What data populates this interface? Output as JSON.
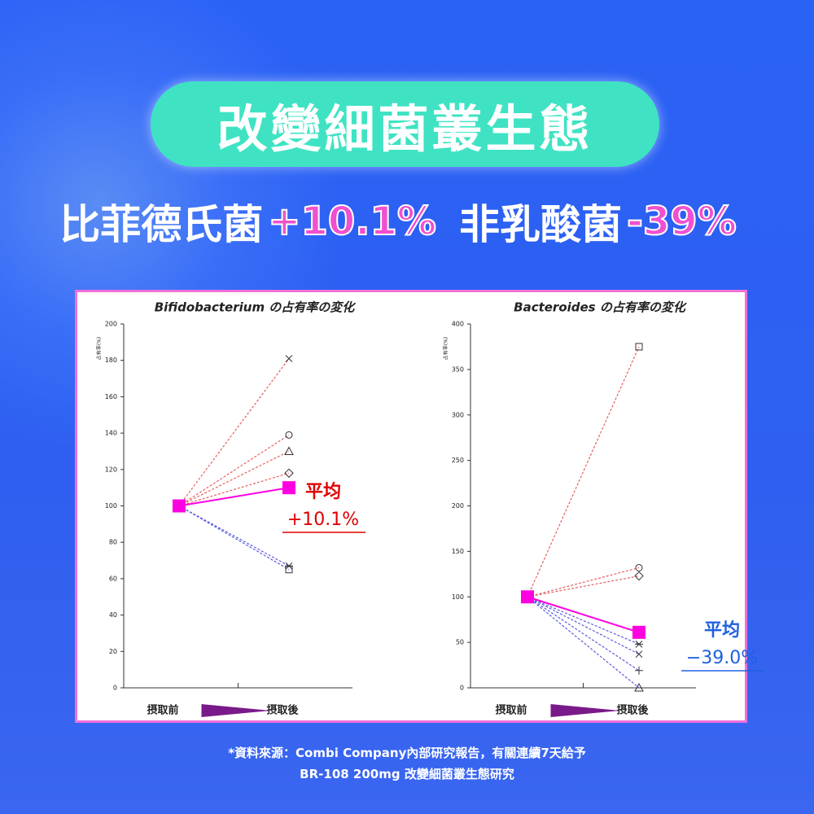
{
  "header": {
    "title": "改變細菌叢生態"
  },
  "headline": {
    "item1": "比菲德氏菌",
    "value1": "+10.1%",
    "item2": "非乳酸菌",
    "value2": "-39%"
  },
  "chart_data": [
    {
      "type": "line",
      "title": "Bifidobacterium の占有率の変化",
      "y_label": "占有率(%)",
      "categories": [
        "摂取前",
        "摂取後"
      ],
      "ylim": [
        0,
        200
      ],
      "yticks": [
        0,
        20,
        40,
        60,
        80,
        100,
        120,
        140,
        160,
        180,
        200
      ],
      "series": [
        {
          "marker": "x",
          "color": "#e86060",
          "values": [
            100,
            181
          ]
        },
        {
          "marker": "circle",
          "color": "#e86060",
          "values": [
            100,
            139
          ]
        },
        {
          "marker": "triangle",
          "color": "#e86060",
          "values": [
            100,
            130
          ]
        },
        {
          "marker": "diamond",
          "color": "#e86060",
          "values": [
            100,
            118
          ]
        },
        {
          "marker": "asterisk",
          "color": "#5a5ae0",
          "values": [
            100,
            67
          ]
        },
        {
          "marker": "square",
          "color": "#5a5ae0",
          "values": [
            100,
            65
          ]
        },
        {
          "marker": "mean",
          "color": "#ff00e0",
          "values": [
            100,
            110
          ]
        }
      ],
      "annotation": {
        "label": "平均",
        "value": "+10.1%",
        "color": "#e00000"
      }
    },
    {
      "type": "line",
      "title": "Bacteroides の占有率の変化",
      "y_label": "占有率(%)",
      "categories": [
        "摂取前",
        "摂取後"
      ],
      "ylim": [
        0,
        400
      ],
      "yticks": [
        0,
        50,
        100,
        150,
        200,
        250,
        300,
        350,
        400
      ],
      "series": [
        {
          "marker": "square",
          "color": "#e86060",
          "values": [
            100,
            375
          ]
        },
        {
          "marker": "circle",
          "color": "#e86060",
          "values": [
            100,
            132
          ]
        },
        {
          "marker": "diamond",
          "color": "#e86060",
          "values": [
            100,
            123
          ]
        },
        {
          "marker": "asterisk",
          "color": "#5a5ae0",
          "values": [
            100,
            48
          ]
        },
        {
          "marker": "x",
          "color": "#5a5ae0",
          "values": [
            100,
            37
          ]
        },
        {
          "marker": "plus",
          "color": "#5a5ae0",
          "values": [
            100,
            19
          ]
        },
        {
          "marker": "triangle",
          "color": "#5a5ae0",
          "values": [
            100,
            0
          ]
        },
        {
          "marker": "mean",
          "color": "#ff00e0",
          "values": [
            100,
            61
          ]
        }
      ],
      "annotation": {
        "label": "平均",
        "value": "−39.0%",
        "color": "#2060e0"
      }
    }
  ],
  "footnote": {
    "line1": "*資料來源：Combi Company內部研究報告，有關連續7天給予",
    "line2": "BR-108 200mg 改變細菌叢生態研究"
  }
}
